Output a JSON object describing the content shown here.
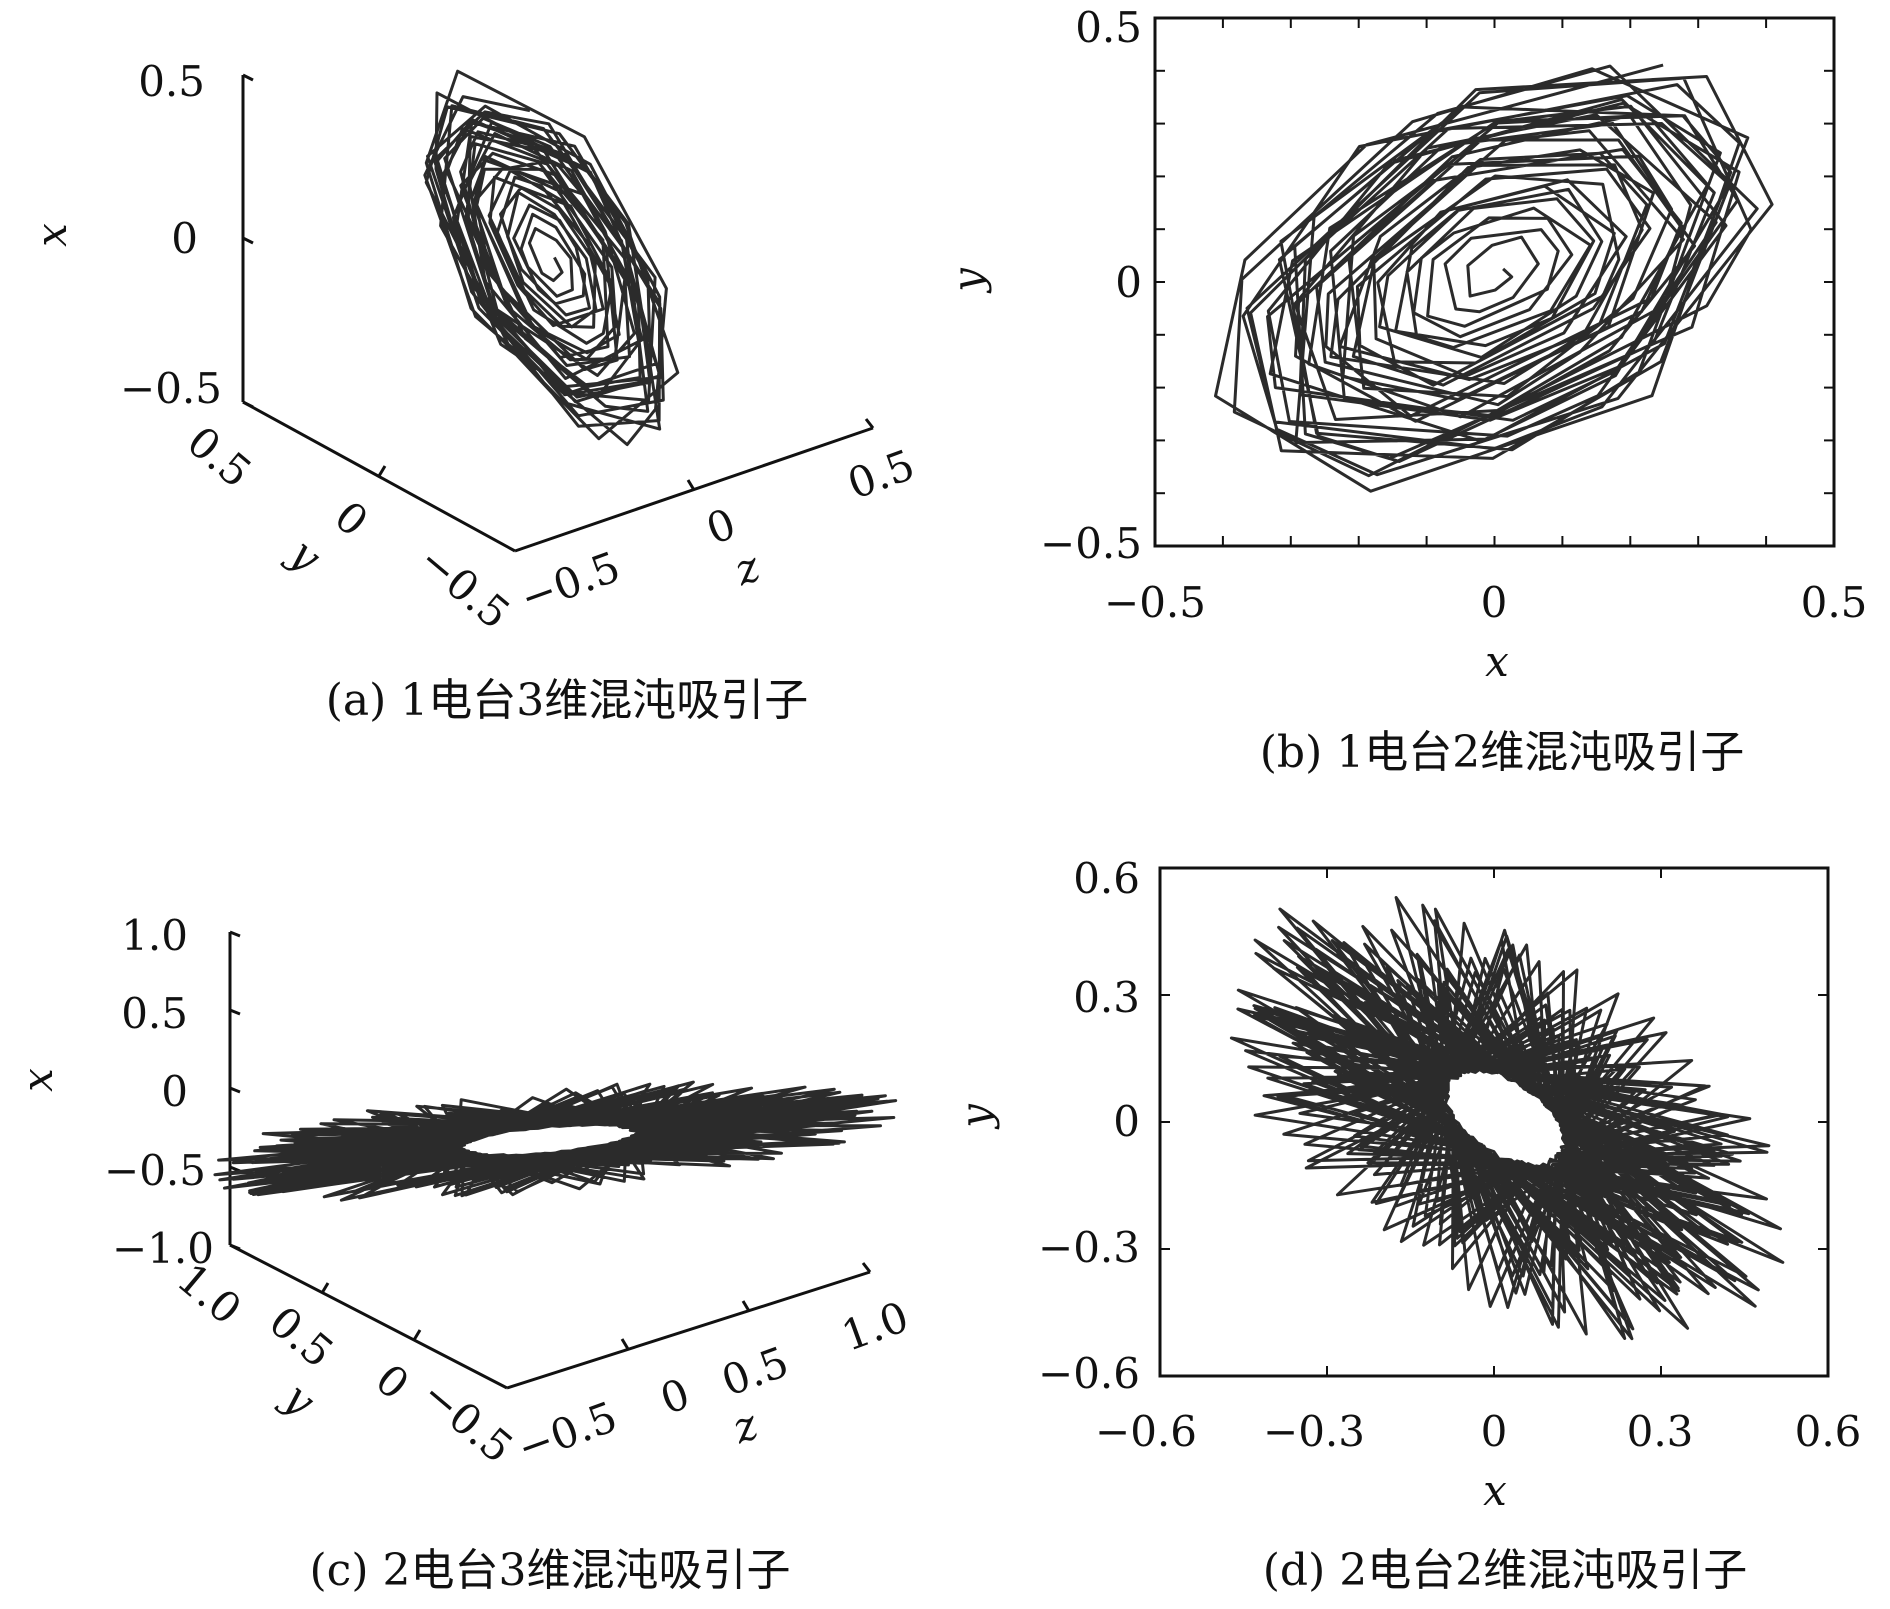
{
  "chart_data": [
    {
      "type": "line3d",
      "caption": "(a) 1电台3维混沌吸引子",
      "x_axis": {
        "label": "x",
        "ticks": [
          "0.5",
          "0",
          "−0.5"
        ],
        "range": [
          -0.5,
          0.5
        ]
      },
      "y_axis": {
        "label": "y",
        "ticks": [
          "0.5",
          "0",
          "−0.5"
        ],
        "range": [
          -0.5,
          0.5
        ]
      },
      "z_axis": {
        "label": "z",
        "ticks": [
          "−0.5",
          "0",
          "0.5"
        ],
        "range": [
          -0.5,
          0.5
        ]
      },
      "attractor": {
        "shape": "spiral",
        "center": [
          0,
          0
        ],
        "extent_x": [
          -0.55,
          0.55
        ],
        "tilt": "diagonal"
      }
    },
    {
      "type": "line",
      "caption": "(b) 1电台2维混沌吸引子",
      "xlabel": "x",
      "ylabel": "y",
      "xlim": [
        -0.5,
        0.5
      ],
      "ylim": [
        -0.5,
        0.5
      ],
      "xticks": [
        "−0.5",
        "0",
        "0.5"
      ],
      "yticks": [
        "0.5",
        "0",
        "−0.5"
      ],
      "attractor": {
        "shape": "spiral",
        "center": [
          0,
          0
        ],
        "outer_radius": 0.45,
        "tilt_deg": 30
      }
    },
    {
      "type": "line3d",
      "caption": "(c) 2电台3维混沌吸引子",
      "x_axis": {
        "label": "x",
        "ticks": [
          "1.0",
          "0.5",
          "0",
          "−0.5",
          "−1.0"
        ],
        "range": [
          -1.0,
          1.0
        ]
      },
      "y_axis": {
        "label": "y",
        "ticks": [
          "1.0",
          "0.5",
          "0",
          "−0.5"
        ],
        "range": [
          -0.5,
          1.0
        ]
      },
      "z_axis": {
        "label": "z",
        "ticks": [
          "−0.5",
          "0",
          "0.5",
          "1.0"
        ],
        "range": [
          -0.5,
          1.0
        ]
      },
      "attractor": {
        "shape": "flat-ring",
        "center": [
          0,
          -0.35
        ]
      }
    },
    {
      "type": "line",
      "caption": "(d) 2电台2维混沌吸引子",
      "xlabel": "x",
      "ylabel": "y",
      "xlim": [
        -0.6,
        0.6
      ],
      "ylim": [
        -0.6,
        0.6
      ],
      "xticks": [
        "−0.6",
        "−0.3",
        "0",
        "0.3",
        "0.6"
      ],
      "yticks": [
        "0.6",
        "0.3",
        "0",
        "−0.3",
        "−0.6"
      ],
      "attractor": {
        "shape": "rosette-ring",
        "center": [
          0.03,
          0
        ],
        "tilt_deg": -35
      }
    }
  ]
}
